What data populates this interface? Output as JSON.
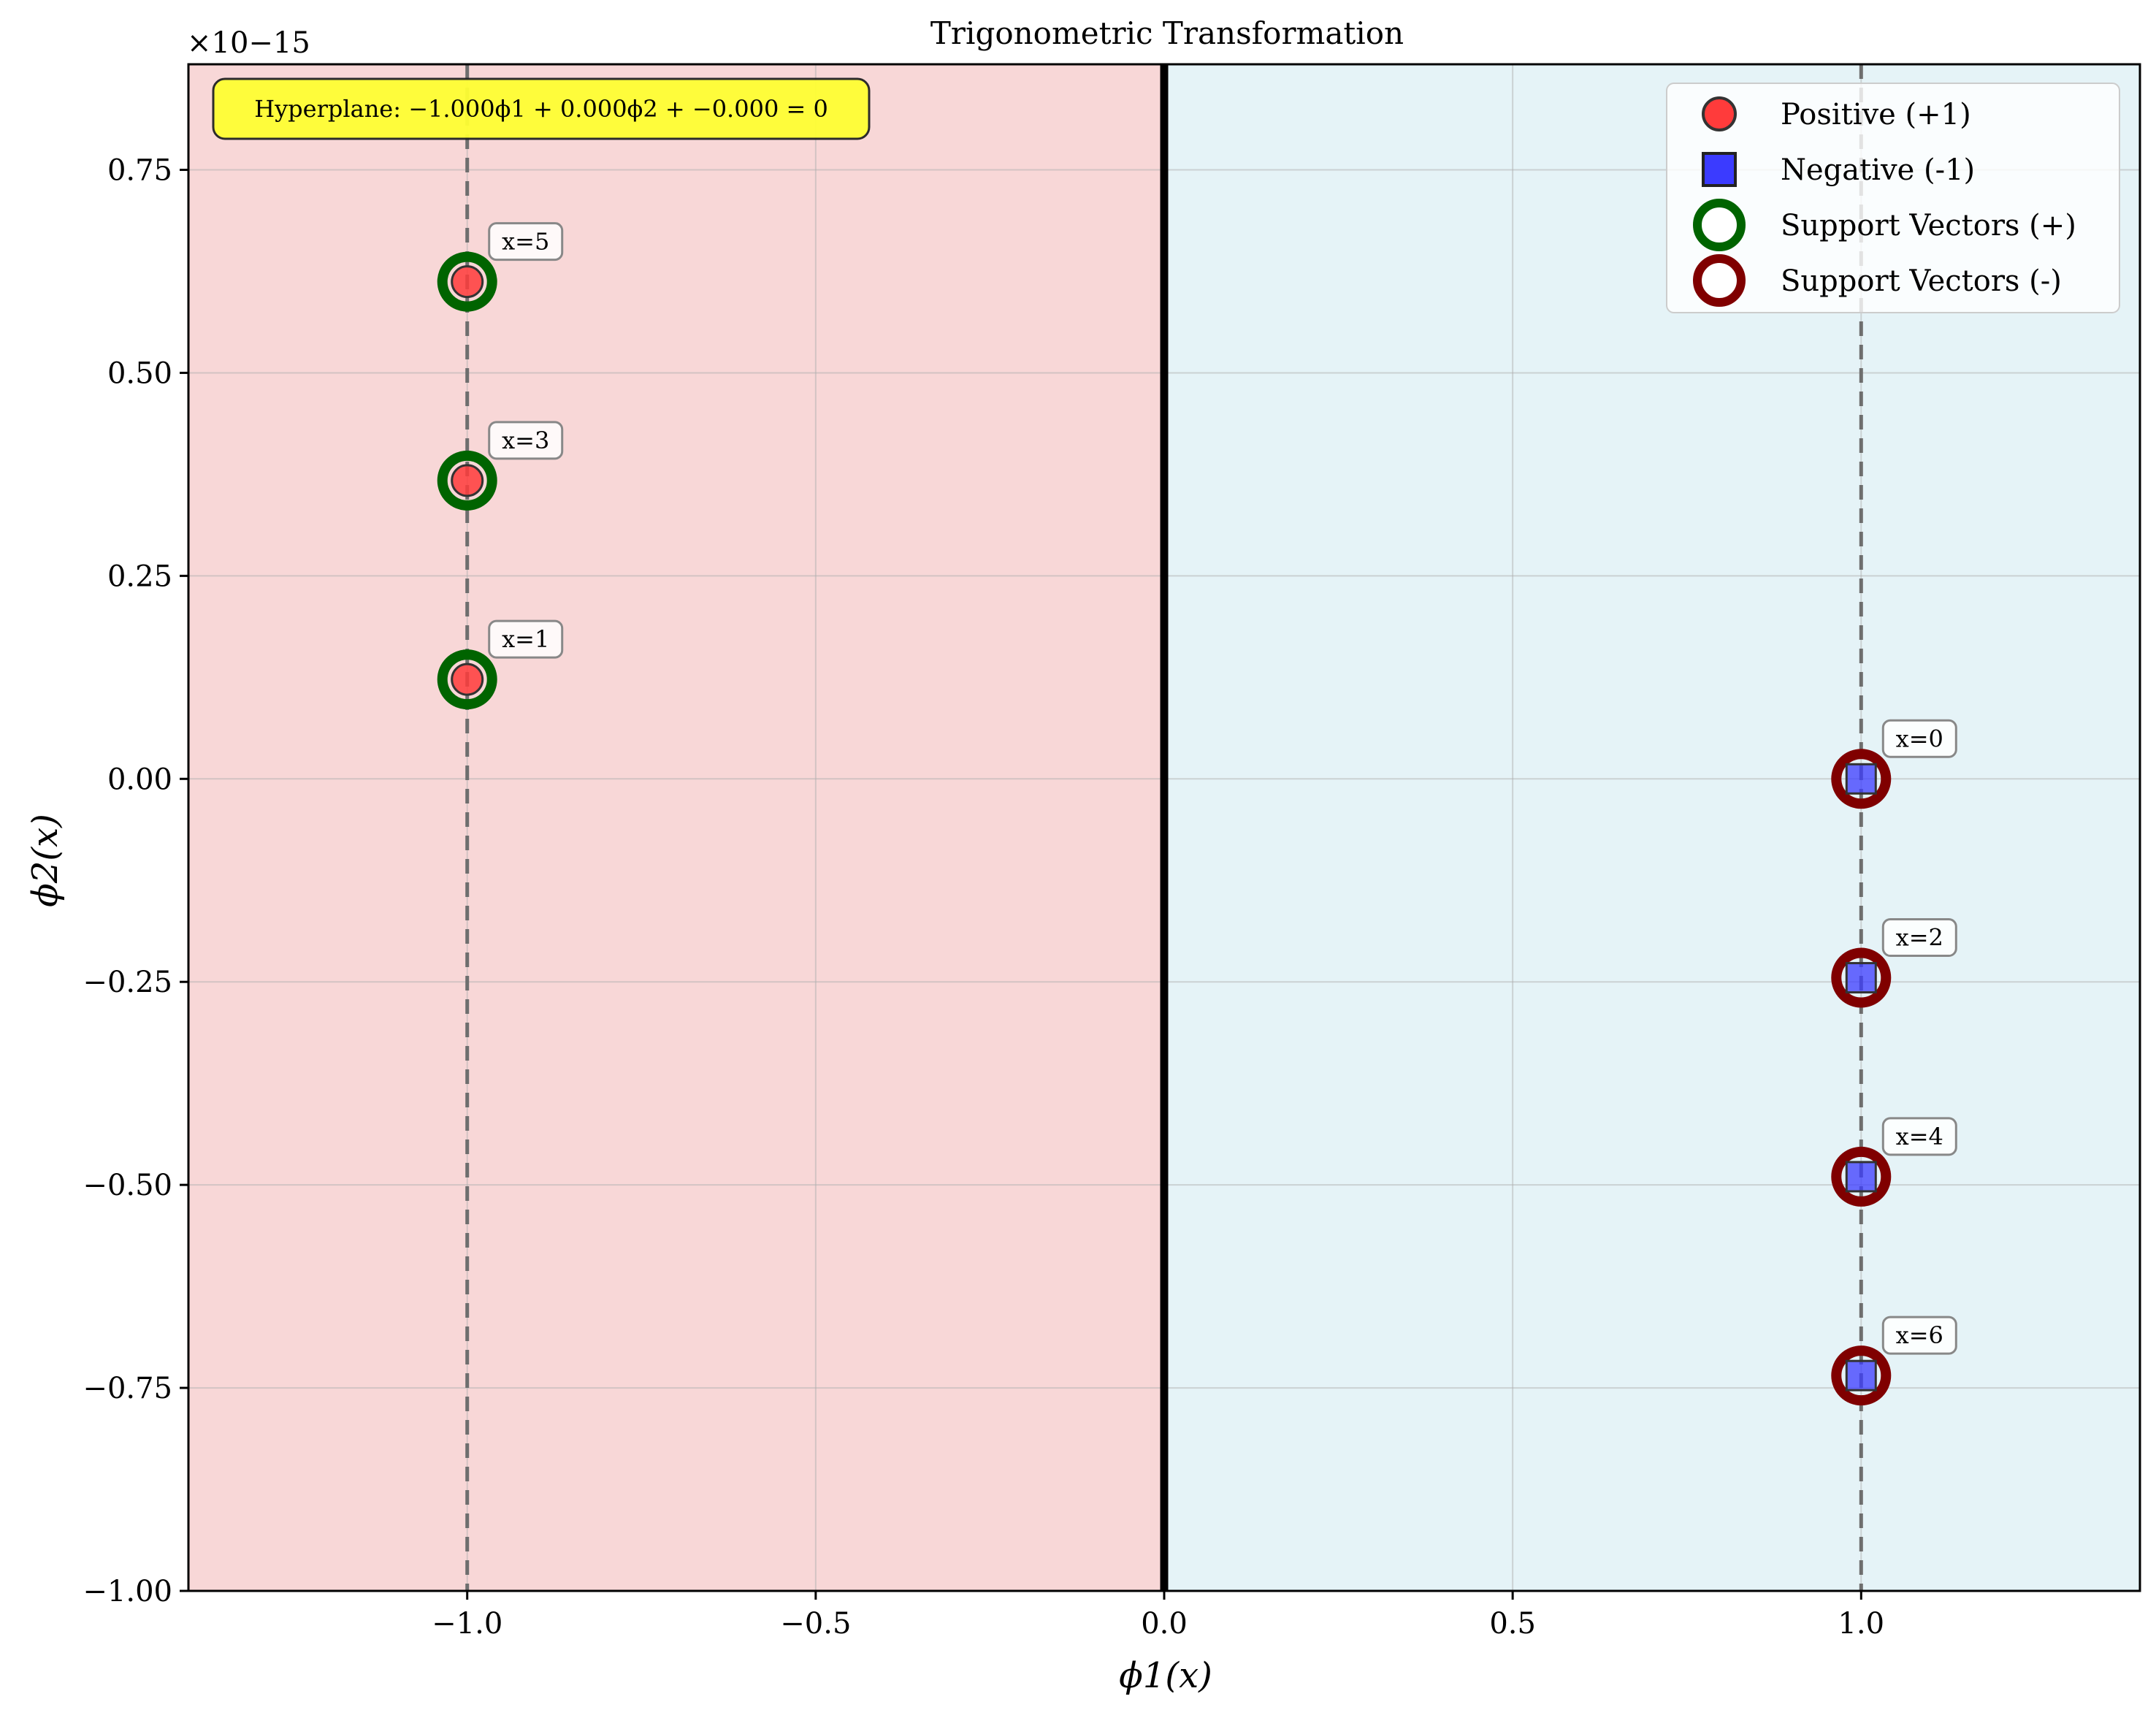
{
  "chart_data": {
    "type": "scatter",
    "title": "Trigonometric Transformation",
    "xlabel": "ϕ1(x)",
    "ylabel": "ϕ2(x)",
    "xlim": [
      -1.4,
      1.4
    ],
    "ylim": [
      -1.0,
      0.88
    ],
    "y_scale_offset": "×10−15",
    "x_ticks": [
      -1.0,
      -0.5,
      0.0,
      0.5,
      1.0
    ],
    "x_tick_labels": [
      "−1.0",
      "−0.5",
      "0.0",
      "0.5",
      "1.0"
    ],
    "y_ticks": [
      0.75,
      0.5,
      0.25,
      0.0,
      -0.25,
      -0.5,
      -0.75,
      -1.0
    ],
    "y_tick_labels": [
      "0.75",
      "0.50",
      "0.25",
      "0.00",
      "−0.25",
      "−0.50",
      "−0.75",
      "−1.00"
    ],
    "grid": true,
    "legend_position": "top-right",
    "hyperplane_box": "Hyperplane: −1.000ϕ1 + 0.000ϕ2 + −0.000 = 0",
    "decision_boundary_x": 0.0,
    "margin_lines_x": [
      -1.0,
      1.0
    ],
    "region_colors": {
      "positive": "#f8d7d7",
      "negative": "#e5f3f7"
    },
    "series": [
      {
        "name": "Positive (+1)",
        "marker": "circle",
        "color": "#ff3b3b",
        "points": [
          {
            "x": -1.0,
            "y": 0.1225,
            "label": "x=1"
          },
          {
            "x": -1.0,
            "y": 0.3674,
            "label": "x=3"
          },
          {
            "x": -1.0,
            "y": 0.6123,
            "label": "x=5"
          }
        ]
      },
      {
        "name": "Negative (-1)",
        "marker": "square",
        "color": "#3b3bff",
        "points": [
          {
            "x": 1.0,
            "y": 0.0,
            "label": "x=0"
          },
          {
            "x": 1.0,
            "y": -0.2449,
            "label": "x=2"
          },
          {
            "x": 1.0,
            "y": -0.4899,
            "label": "x=4"
          },
          {
            "x": 1.0,
            "y": -0.7348,
            "label": "x=6"
          }
        ]
      }
    ],
    "support_vectors": [
      {
        "name": "Support Vectors (+)",
        "color": "#006400"
      },
      {
        "name": "Support Vectors (-)",
        "color": "#800000"
      }
    ]
  }
}
